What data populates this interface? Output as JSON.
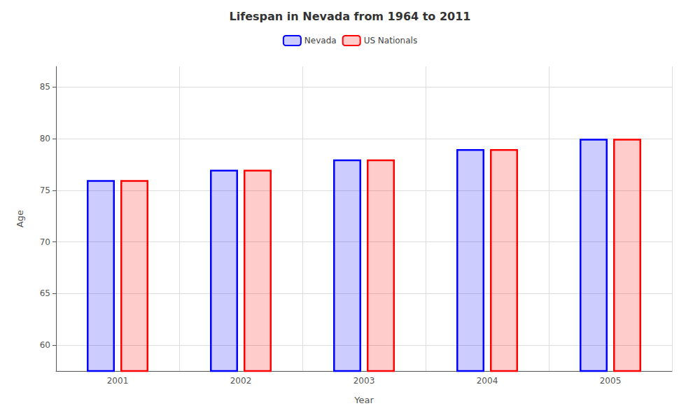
{
  "chart_data": {
    "type": "bar",
    "title": "Lifespan in Nevada from 1964 to 2011",
    "x_label": "Year",
    "y_label": "Age",
    "categories": [
      "2001",
      "2002",
      "2003",
      "2004",
      "2005"
    ],
    "series": [
      {
        "name": "Nevada",
        "color": "#0000ff",
        "values": [
          76,
          77,
          78,
          79,
          80
        ]
      },
      {
        "name": "US Nationals",
        "color": "#ff0000",
        "values": [
          76,
          77,
          78,
          79,
          80
        ]
      }
    ],
    "ylim": [
      57.5,
      87
    ],
    "yticks": [
      60,
      65,
      70,
      75,
      80,
      85
    ],
    "grid": true,
    "legend": "top"
  }
}
